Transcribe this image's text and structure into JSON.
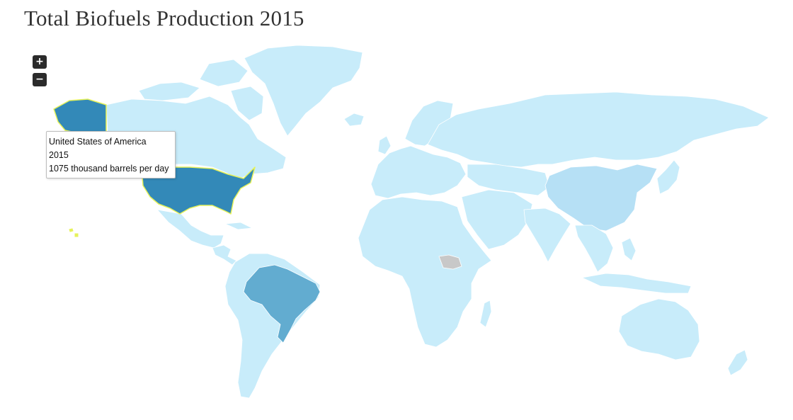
{
  "title": "Total Biofuels Production 2015",
  "controls": {
    "zoom_in_label": "+",
    "zoom_out_label": "−"
  },
  "colors": {
    "no_data": "#c8c8c8",
    "low": "#c8ecfa",
    "mid_low": "#b6e0f5",
    "mid": "#62acd0",
    "high": "#3389b8",
    "highlight_stroke": "#e6f25a",
    "background": "#ffffff"
  },
  "map_data": {
    "year": "2015",
    "unit": "thousand barrels per day",
    "highlighted_country": "United States of America",
    "shaded_regions": [
      {
        "country": "United States of America",
        "value": 1075,
        "color": "high"
      },
      {
        "country": "Brazil",
        "color": "mid"
      },
      {
        "country": "China",
        "color": "mid_low"
      },
      {
        "country": "South Sudan",
        "color": "no_data"
      }
    ]
  },
  "tooltip": {
    "country": "United States of America",
    "year": "2015",
    "value_text": "1075 thousand barrels per day"
  }
}
